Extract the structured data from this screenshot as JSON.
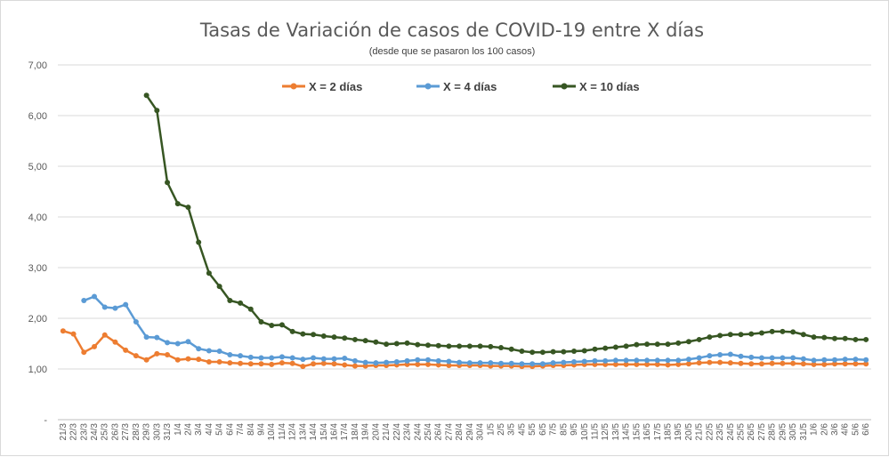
{
  "chart_data": {
    "type": "line",
    "title": "Tasas de Variación de casos de COVID-19 entre X días",
    "subtitle": "(desde que se pasaron los 100 casos)",
    "xlabel": "",
    "ylabel": "",
    "ylim": [
      0,
      7
    ],
    "yticks": [
      "-",
      "1,00",
      "2,00",
      "3,00",
      "4,00",
      "5,00",
      "6,00",
      "7,00"
    ],
    "grid": true,
    "legend_position": "top",
    "categories": [
      "21/3",
      "22/3",
      "23/3",
      "24/3",
      "25/3",
      "26/3",
      "27/3",
      "28/3",
      "29/3",
      "30/3",
      "31/3",
      "1/4",
      "2/4",
      "3/4",
      "4/4",
      "5/4",
      "6/4",
      "7/4",
      "8/4",
      "9/4",
      "10/4",
      "11/4",
      "12/4",
      "13/4",
      "14/4",
      "15/4",
      "16/4",
      "17/4",
      "18/4",
      "19/4",
      "20/4",
      "21/4",
      "22/4",
      "23/4",
      "24/4",
      "25/4",
      "26/4",
      "27/4",
      "28/4",
      "29/4",
      "30/4",
      "1/5",
      "2/5",
      "3/5",
      "4/5",
      "5/5",
      "6/5",
      "7/5",
      "8/5",
      "9/5",
      "10/5",
      "11/5",
      "12/5",
      "13/5",
      "14/5",
      "15/5",
      "16/5",
      "17/5",
      "18/5",
      "19/5",
      "20/5",
      "21/5",
      "22/5",
      "23/5",
      "24/5",
      "25/5",
      "26/5",
      "27/5",
      "28/5",
      "29/5",
      "30/5",
      "31/5",
      "1/6",
      "2/6",
      "3/6",
      "4/6",
      "5/6",
      "6/6"
    ],
    "series": [
      {
        "name": "X = 2 días",
        "color": "#ED7D31",
        "values": [
          1.75,
          1.69,
          1.33,
          1.44,
          1.67,
          1.53,
          1.37,
          1.26,
          1.18,
          1.3,
          1.28,
          1.18,
          1.2,
          1.19,
          1.14,
          1.14,
          1.12,
          1.11,
          1.1,
          1.1,
          1.09,
          1.12,
          1.11,
          1.05,
          1.1,
          1.11,
          1.1,
          1.08,
          1.06,
          1.06,
          1.07,
          1.07,
          1.08,
          1.09,
          1.09,
          1.09,
          1.08,
          1.07,
          1.07,
          1.07,
          1.07,
          1.06,
          1.06,
          1.06,
          1.05,
          1.05,
          1.06,
          1.07,
          1.07,
          1.08,
          1.09,
          1.09,
          1.09,
          1.09,
          1.09,
          1.09,
          1.09,
          1.09,
          1.08,
          1.09,
          1.1,
          1.12,
          1.13,
          1.13,
          1.12,
          1.11,
          1.1,
          1.1,
          1.11,
          1.11,
          1.11,
          1.1,
          1.09,
          1.09,
          1.1,
          1.1,
          1.1,
          1.1
        ]
      },
      {
        "name": "X = 4 días",
        "color": "#5B9BD5",
        "values": [
          null,
          null,
          2.35,
          2.43,
          2.22,
          2.2,
          2.27,
          1.93,
          1.63,
          1.62,
          1.52,
          1.5,
          1.54,
          1.4,
          1.36,
          1.35,
          1.28,
          1.26,
          1.23,
          1.22,
          1.22,
          1.24,
          1.22,
          1.19,
          1.22,
          1.2,
          1.2,
          1.21,
          1.16,
          1.13,
          1.12,
          1.13,
          1.14,
          1.16,
          1.18,
          1.18,
          1.16,
          1.15,
          1.13,
          1.12,
          1.12,
          1.12,
          1.11,
          1.11,
          1.1,
          1.1,
          1.1,
          1.12,
          1.13,
          1.14,
          1.15,
          1.16,
          1.16,
          1.17,
          1.17,
          1.17,
          1.17,
          1.17,
          1.17,
          1.17,
          1.19,
          1.22,
          1.26,
          1.28,
          1.29,
          1.25,
          1.23,
          1.22,
          1.22,
          1.22,
          1.22,
          1.2,
          1.17,
          1.18,
          1.18,
          1.19,
          1.19,
          1.18
        ]
      },
      {
        "name": "X = 10 días",
        "color": "#375623",
        "values": [
          null,
          null,
          null,
          null,
          null,
          null,
          null,
          null,
          6.4,
          6.1,
          4.68,
          4.26,
          4.19,
          3.5,
          2.89,
          2.63,
          2.35,
          2.3,
          2.18,
          1.93,
          1.86,
          1.87,
          1.74,
          1.69,
          1.68,
          1.65,
          1.63,
          1.61,
          1.58,
          1.56,
          1.53,
          1.49,
          1.5,
          1.51,
          1.48,
          1.47,
          1.46,
          1.45,
          1.45,
          1.45,
          1.45,
          1.44,
          1.42,
          1.39,
          1.35,
          1.33,
          1.33,
          1.34,
          1.34,
          1.35,
          1.36,
          1.39,
          1.41,
          1.43,
          1.45,
          1.48,
          1.49,
          1.49,
          1.49,
          1.51,
          1.54,
          1.58,
          1.63,
          1.66,
          1.68,
          1.68,
          1.69,
          1.71,
          1.74,
          1.74,
          1.73,
          1.68,
          1.63,
          1.62,
          1.6,
          1.6,
          1.58,
          1.58
        ]
      }
    ]
  }
}
